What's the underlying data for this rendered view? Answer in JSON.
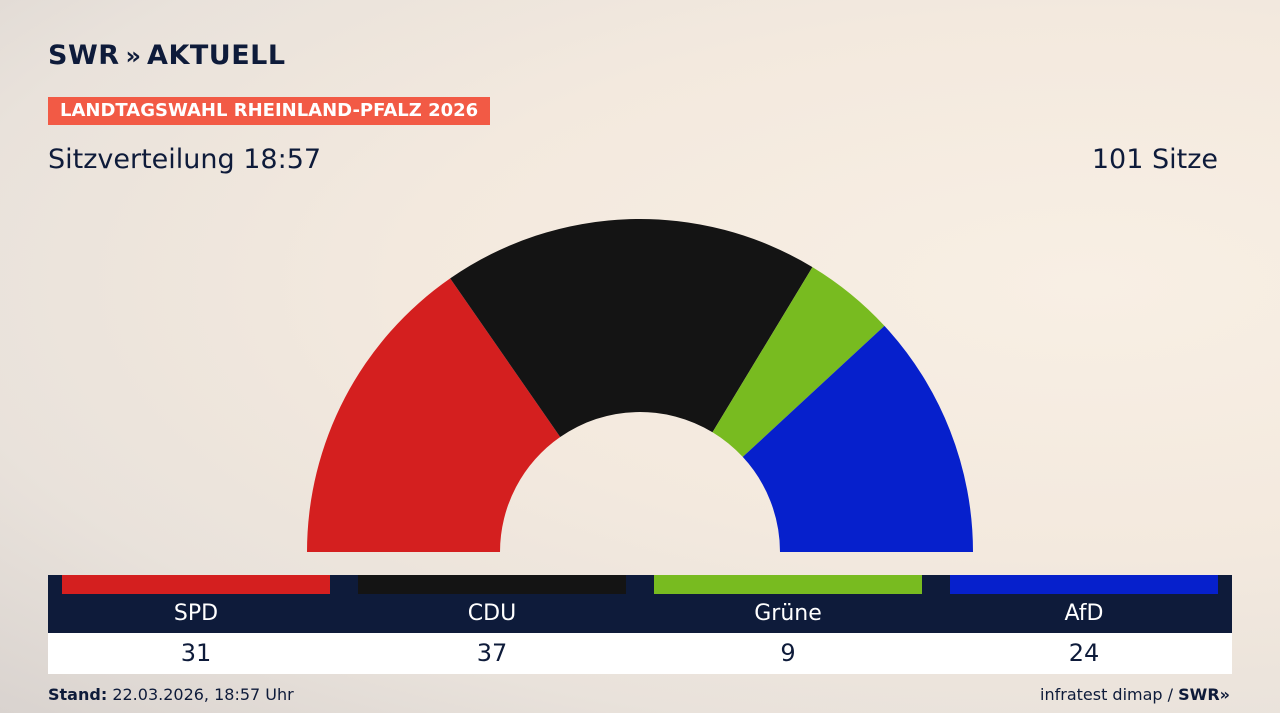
{
  "header": {
    "brand_name": "SWR",
    "brand_chevrons": "»",
    "brand_suffix": "AKTUELL",
    "badge": "LANDTAGSWAHL RHEINLAND-PFALZ 2026",
    "title_left": "Sitzverteilung 18:57",
    "title_right": "101 Sitze"
  },
  "chart_data": {
    "type": "pie",
    "shape": "semicircle",
    "total_seats": 101,
    "series": [
      {
        "name": "SPD",
        "value": 31,
        "color": "#d41f1f"
      },
      {
        "name": "CDU",
        "value": 37,
        "color": "#141414"
      },
      {
        "name": "Grüne",
        "value": 9,
        "color": "#78bb20"
      },
      {
        "name": "AfD",
        "value": 24,
        "color": "#0620cc"
      }
    ]
  },
  "footer": {
    "stand_label": "Stand:",
    "stand_value": "22.03.2026, 18:57 Uhr",
    "source": "infratest dimap /",
    "source_brand": "SWR",
    "source_chevrons": "»"
  }
}
